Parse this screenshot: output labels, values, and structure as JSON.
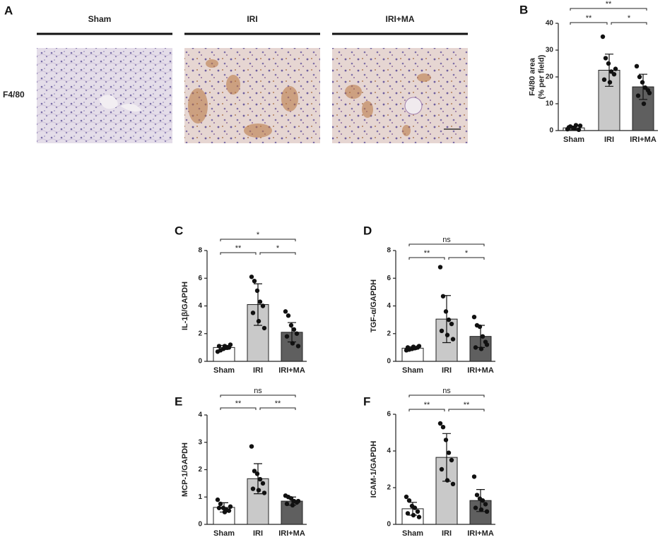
{
  "panel_a": {
    "label": "A",
    "columns": [
      "Sham",
      "IRI",
      "IRI+MA"
    ],
    "row_label": "F4/80"
  },
  "chart_data": [
    {
      "type": "bar",
      "panel": "B",
      "ylabel": [
        "F4/80 area",
        "(% per field)"
      ],
      "categories": [
        "Sham",
        "IRI",
        "IRI+MA"
      ],
      "colors": [
        "#ffffff",
        "#c9c9c9",
        "#5f5f5f"
      ],
      "values": [
        1.0,
        22.5,
        16.3
      ],
      "errors": [
        0.7,
        6.0,
        4.7
      ],
      "points": [
        [
          0.5,
          1.5,
          1.0,
          2.0,
          0.3,
          1.2,
          0.8,
          1.8
        ],
        [
          35,
          27,
          25,
          22,
          21,
          19,
          18,
          23
        ],
        [
          24,
          20,
          18,
          16,
          15,
          13,
          10,
          14
        ]
      ],
      "ylim": [
        0,
        40
      ],
      "yticks": [
        0,
        10,
        20,
        30,
        40
      ],
      "significance": [
        "**",
        "*",
        "**"
      ]
    },
    {
      "type": "bar",
      "panel": "C",
      "ylabel": [
        "IL-1β/GAPDH"
      ],
      "categories": [
        "Sham",
        "IRI",
        "IRI+MA"
      ],
      "colors": [
        "#ffffff",
        "#c9c9c9",
        "#5f5f5f"
      ],
      "values": [
        1.0,
        4.1,
        2.1
      ],
      "errors": [
        0.15,
        1.5,
        0.7
      ],
      "points": [
        [
          0.7,
          0.8,
          0.9,
          1.0,
          1.0,
          1.1,
          1.1,
          1.2
        ],
        [
          6.1,
          5.8,
          5.1,
          4.3,
          4.0,
          3.5,
          2.9,
          2.4
        ],
        [
          3.6,
          3.3,
          2.6,
          2.3,
          2.0,
          1.8,
          1.3,
          1.1
        ]
      ],
      "ylim": [
        0,
        8
      ],
      "yticks": [
        0,
        2,
        4,
        6,
        8
      ],
      "significance": [
        "**",
        "*",
        "*"
      ]
    },
    {
      "type": "bar",
      "panel": "D",
      "ylabel": [
        "TGF-α/GAPDH"
      ],
      "categories": [
        "Sham",
        "IRI",
        "IRI+MA"
      ],
      "colors": [
        "#ffffff",
        "#c9c9c9",
        "#5f5f5f"
      ],
      "values": [
        0.95,
        3.05,
        1.8
      ],
      "errors": [
        0.1,
        1.7,
        0.8
      ],
      "points": [
        [
          0.8,
          0.85,
          0.9,
          0.95,
          1.0,
          1.0,
          1.05,
          1.1
        ],
        [
          6.8,
          4.7,
          3.6,
          3.0,
          2.7,
          2.2,
          1.9,
          1.6
        ],
        [
          3.2,
          2.6,
          2.5,
          1.8,
          1.4,
          1.0,
          0.9,
          1.2
        ]
      ],
      "ylim": [
        0,
        8
      ],
      "yticks": [
        0,
        2,
        4,
        6,
        8
      ],
      "significance": [
        "**",
        "*",
        "ns"
      ]
    },
    {
      "type": "bar",
      "panel": "E",
      "ylabel": [
        "MCP-1/GAPDH"
      ],
      "categories": [
        "Sham",
        "IRI",
        "IRI+MA"
      ],
      "colors": [
        "#ffffff",
        "#c9c9c9",
        "#5f5f5f"
      ],
      "values": [
        0.62,
        1.67,
        0.85
      ],
      "errors": [
        0.17,
        0.55,
        0.15
      ],
      "points": [
        [
          0.9,
          0.75,
          0.6,
          0.55,
          0.5,
          0.6,
          0.45,
          0.65
        ],
        [
          2.85,
          1.95,
          1.85,
          1.65,
          1.5,
          1.3,
          1.25,
          1.15
        ],
        [
          1.05,
          1.0,
          0.95,
          0.85,
          0.8,
          0.75,
          0.7,
          0.85
        ]
      ],
      "ylim": [
        0,
        4
      ],
      "yticks": [
        0,
        1,
        2,
        3,
        4
      ],
      "significance": [
        "**",
        "**",
        "ns"
      ]
    },
    {
      "type": "bar",
      "panel": "F",
      "ylabel": [
        "ICAM-1/GAPDH"
      ],
      "categories": [
        "Sham",
        "IRI",
        "IRI+MA"
      ],
      "colors": [
        "#ffffff",
        "#c9c9c9",
        "#5f5f5f"
      ],
      "values": [
        0.85,
        3.65,
        1.3
      ],
      "errors": [
        0.35,
        1.3,
        0.6
      ],
      "points": [
        [
          1.5,
          1.3,
          1.0,
          0.9,
          0.7,
          0.6,
          0.5,
          0.4
        ],
        [
          5.5,
          5.3,
          4.6,
          3.9,
          3.5,
          3.0,
          2.4,
          2.2
        ],
        [
          2.6,
          1.6,
          1.4,
          1.3,
          1.1,
          0.9,
          0.8,
          0.7
        ]
      ],
      "ylim": [
        0,
        6
      ],
      "yticks": [
        0,
        2,
        4,
        6
      ],
      "significance": [
        "**",
        "**",
        "ns"
      ]
    }
  ]
}
